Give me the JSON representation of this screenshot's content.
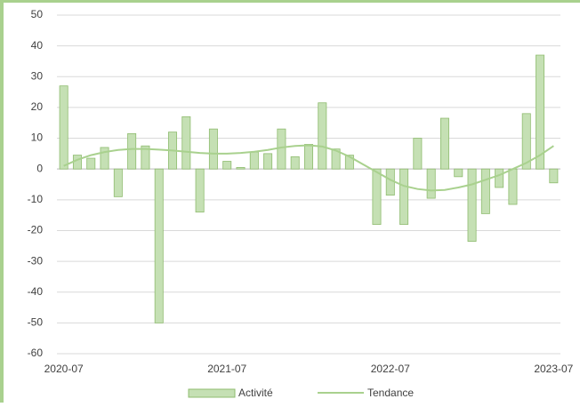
{
  "chart_data": {
    "type": "bar",
    "categories": [
      "2020-07",
      null,
      null,
      null,
      null,
      null,
      null,
      null,
      null,
      null,
      null,
      null,
      "2021-07",
      null,
      null,
      null,
      null,
      null,
      null,
      null,
      null,
      null,
      null,
      null,
      "2022-07",
      null,
      null,
      null,
      null,
      null,
      null,
      null,
      null,
      null,
      null,
      null,
      "2023-07"
    ],
    "series": [
      {
        "name": "Activité",
        "type": "bar",
        "color": "#c5e0b4",
        "values": [
          27,
          4.5,
          3.5,
          7,
          -9,
          11.5,
          7.5,
          -50,
          12,
          17,
          -14,
          13,
          2.5,
          0.5,
          5.5,
          5,
          13,
          4,
          8,
          21.5,
          6.5,
          4.5,
          0,
          -18,
          -8.5,
          -18,
          10,
          -9.5,
          16.5,
          -2.5,
          -23.5,
          -14.5,
          -6,
          -11.5,
          18,
          37,
          -4.5
        ]
      },
      {
        "name": "Tendance",
        "type": "line",
        "color": "#a9d18e",
        "values": [
          1,
          3,
          4.5,
          5.5,
          6.2,
          6.5,
          6.5,
          6.3,
          6,
          5.6,
          5.2,
          5,
          5,
          5.2,
          5.6,
          6.2,
          7,
          7.5,
          7.7,
          7.3,
          6,
          4,
          1.5,
          -1,
          -3.5,
          -5.5,
          -6.5,
          -7,
          -6.8,
          -6,
          -5,
          -3.5,
          -2,
          0,
          2,
          4.5,
          7.5
        ]
      }
    ],
    "ylim": [
      -60,
      50
    ],
    "yticks": [
      -60,
      -50,
      -40,
      -30,
      -20,
      -10,
      0,
      10,
      20,
      30,
      40,
      50
    ],
    "grid": true,
    "legend": "bottom"
  }
}
